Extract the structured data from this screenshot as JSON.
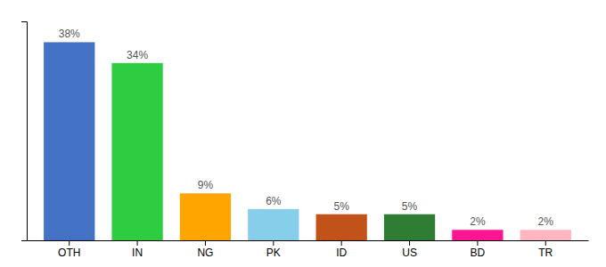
{
  "chart_data": {
    "type": "bar",
    "categories": [
      "OTH",
      "IN",
      "NG",
      "PK",
      "ID",
      "US",
      "BD",
      "TR"
    ],
    "values": [
      38,
      34,
      9,
      6,
      5,
      5,
      2,
      2
    ],
    "value_labels": [
      "38%",
      "34%",
      "9%",
      "6%",
      "5%",
      "5%",
      "2%",
      "2%"
    ],
    "colors": [
      "#4472C4",
      "#2ECC40",
      "#FFA500",
      "#87CEEB",
      "#C0521A",
      "#2E7D32",
      "#FF1493",
      "#FFB6C1"
    ],
    "ylim": [
      0,
      42
    ],
    "data_labels": true,
    "tick_labels": "x"
  }
}
